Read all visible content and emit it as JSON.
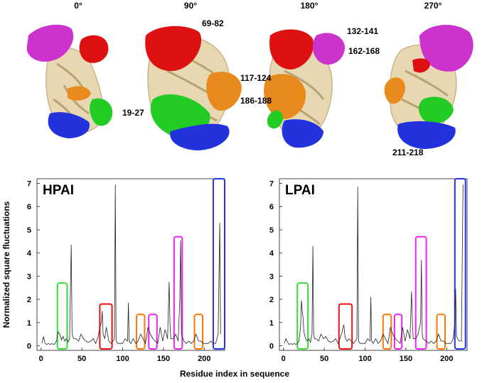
{
  "structure_panel": {
    "angles": [
      "0°",
      "90°",
      "180°",
      "270°"
    ],
    "region_labels": [
      "69-82",
      "132-141",
      "162-168",
      "117-124",
      "186-188",
      "19-27",
      "211-218"
    ]
  },
  "chart_data": [
    {
      "type": "line",
      "panel_title": "HPAI",
      "xlabel": "Residue index in sequence",
      "ylabel": "Normalized square fluctuations",
      "xlim": [
        -5,
        225
      ],
      "ylim": [
        -0.2,
        7.2
      ],
      "xticks": [
        0,
        50,
        100,
        150,
        200
      ],
      "yticks": [
        0,
        1,
        2,
        3,
        4,
        5,
        6,
        7
      ],
      "x": [
        1,
        3,
        5,
        7,
        9,
        11,
        13,
        15,
        17,
        19,
        21,
        23,
        25,
        27,
        29,
        31,
        33,
        35,
        36,
        37,
        38,
        40,
        43,
        46,
        49,
        52,
        55,
        58,
        61,
        64,
        67,
        70,
        72,
        74,
        75,
        76,
        78,
        80,
        83,
        86,
        88,
        90,
        91,
        92,
        94,
        97,
        100,
        103,
        106,
        107,
        108,
        110,
        113,
        116,
        119,
        122,
        125,
        128,
        131,
        134,
        137,
        140,
        143,
        146,
        149,
        152,
        155,
        157,
        158,
        159,
        162,
        165,
        168,
        170,
        171,
        172,
        175,
        178,
        181,
        184,
        187,
        190,
        193,
        196,
        199,
        202,
        205,
        208,
        211,
        214,
        217,
        219,
        220
      ],
      "y": [
        0.1,
        0.4,
        0.1,
        0.05,
        0.1,
        0.05,
        0.1,
        0.05,
        0.1,
        0.2,
        0.6,
        0.5,
        0.25,
        0.4,
        0.2,
        0.3,
        0.15,
        0.3,
        2.5,
        4.35,
        0.5,
        0.3,
        0.3,
        0.2,
        0.5,
        0.3,
        0.2,
        0.15,
        0.2,
        0.3,
        0.1,
        0.4,
        0.8,
        1.0,
        1.5,
        0.5,
        0.3,
        0.8,
        0.2,
        0.1,
        0.2,
        0.3,
        6.95,
        0.2,
        0.1,
        0.1,
        0.1,
        0.3,
        0.2,
        1.85,
        0.2,
        0.1,
        0.3,
        0.1,
        0.2,
        0.5,
        0.3,
        0.1,
        0.8,
        0.5,
        0.3,
        0.2,
        0.1,
        0.8,
        0.2,
        0.7,
        0.3,
        2.75,
        1.0,
        0.3,
        0.3,
        0.5,
        0.2,
        2.0,
        4.55,
        0.5,
        0.2,
        0.1,
        0.2,
        0.1,
        0.2,
        0.5,
        0.2,
        0.2,
        0.1,
        0.1,
        0.1,
        0.2,
        0.1,
        0.1,
        0.5,
        5.3,
        0.5
      ],
      "region_boxes": [
        {
          "residues": [
            20,
            32
          ],
          "color": "#33dd33",
          "height": 2.7
        },
        {
          "residues": [
            72,
            87
          ],
          "color": "#ee1111",
          "height": 1.8
        },
        {
          "residues": [
            117,
            127
          ],
          "color": "#ff7700",
          "height": 1.35
        },
        {
          "residues": [
            132,
            142
          ],
          "color": "#ee22ee",
          "height": 1.35
        },
        {
          "residues": [
            163,
            173
          ],
          "color": "#ee22ee",
          "height": 4.7
        },
        {
          "residues": [
            188,
            198
          ],
          "color": "#ff7700",
          "height": 1.35
        },
        {
          "residues": [
            211,
            225
          ],
          "color": "#2233ee",
          "height": 7.2
        }
      ]
    },
    {
      "type": "line",
      "panel_title": "LPAI",
      "xlabel": "",
      "ylabel": "",
      "xlim": [
        -5,
        225
      ],
      "ylim": [
        -0.2,
        7.2
      ],
      "xticks": [
        0,
        50,
        100,
        150,
        200
      ],
      "yticks": [
        0,
        1,
        2,
        3,
        4,
        5,
        6,
        7
      ],
      "x": [
        1,
        3,
        5,
        7,
        9,
        11,
        13,
        15,
        17,
        19,
        21,
        22,
        23,
        24,
        25,
        27,
        29,
        31,
        33,
        35,
        36,
        37,
        38,
        40,
        43,
        46,
        49,
        52,
        55,
        58,
        61,
        64,
        67,
        70,
        72,
        73,
        74,
        75,
        76,
        78,
        80,
        83,
        86,
        88,
        90,
        91,
        92,
        94,
        97,
        100,
        103,
        106,
        107,
        108,
        110,
        113,
        116,
        119,
        122,
        125,
        128,
        131,
        134,
        137,
        140,
        143,
        146,
        149,
        152,
        155,
        157,
        158,
        159,
        162,
        165,
        168,
        169,
        170,
        171,
        175,
        178,
        181,
        184,
        187,
        190,
        193,
        196,
        199,
        202,
        205,
        208,
        210,
        211,
        212,
        215,
        218,
        220
      ],
      "y": [
        0.1,
        0.3,
        0.15,
        0.05,
        0.1,
        0.05,
        0.1,
        0.05,
        0.1,
        0.2,
        0.8,
        1.95,
        1.5,
        1.2,
        0.6,
        0.3,
        0.2,
        0.3,
        0.15,
        0.5,
        4.3,
        0.5,
        0.3,
        0.3,
        0.2,
        0.5,
        0.3,
        0.4,
        0.2,
        0.15,
        0.2,
        0.3,
        0.1,
        0.4,
        0.6,
        0.8,
        0.9,
        0.5,
        0.3,
        0.2,
        0.3,
        0.2,
        0.1,
        0.2,
        0.3,
        6.85,
        0.2,
        0.1,
        0.1,
        0.1,
        0.3,
        0.2,
        2.1,
        0.2,
        0.1,
        0.3,
        0.1,
        0.2,
        0.5,
        0.3,
        0.1,
        0.8,
        0.5,
        0.3,
        0.2,
        0.1,
        0.8,
        0.2,
        0.7,
        0.3,
        2.35,
        1.0,
        0.3,
        0.3,
        0.5,
        1.0,
        3.7,
        0.5,
        0.3,
        0.2,
        0.1,
        0.2,
        0.1,
        0.2,
        0.5,
        0.2,
        0.2,
        0.1,
        0.1,
        0.1,
        0.3,
        1.0,
        2.45,
        0.4,
        0.2,
        0.2,
        6.95
      ],
      "region_boxes": [
        {
          "residues": [
            17,
            30
          ],
          "color": "#33dd33",
          "height": 2.7
        },
        {
          "residues": [
            68,
            84
          ],
          "color": "#ee1111",
          "height": 1.8
        },
        {
          "residues": [
            122,
            132
          ],
          "color": "#ff7700",
          "height": 1.35
        },
        {
          "residues": [
            136,
            145
          ],
          "color": "#ee22ee",
          "height": 1.35
        },
        {
          "residues": [
            162,
            175
          ],
          "color": "#ee22ee",
          "height": 4.7
        },
        {
          "residues": [
            188,
            198
          ],
          "color": "#ff7700",
          "height": 1.35
        },
        {
          "residues": [
            210,
            223
          ],
          "color": "#2233ee",
          "height": 7.2
        }
      ]
    }
  ]
}
